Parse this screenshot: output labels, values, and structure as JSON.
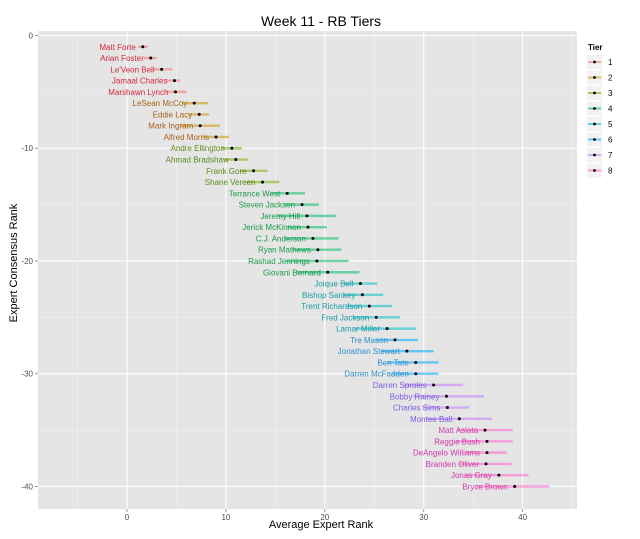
{
  "chart_data": {
    "type": "scatter",
    "title": "Week 11 - RB Tiers",
    "xlabel": "Average Expert Rank",
    "ylabel": "Expert Consensus Rank",
    "xlim": [
      -9,
      45.5
    ],
    "ylim": [
      -42,
      0.4
    ],
    "x_ticks": [
      0,
      10,
      20,
      30,
      40
    ],
    "y_ticks": [
      0,
      -10,
      -20,
      -30,
      -40
    ],
    "grid": true,
    "legend": {
      "title": "Tier",
      "placement": "top-right",
      "items": [
        {
          "tier": 1,
          "label": "1",
          "color": "#f8766d"
        },
        {
          "tier": 2,
          "label": "2",
          "color": "#cd9600"
        },
        {
          "tier": 3,
          "label": "3",
          "color": "#7cae00"
        },
        {
          "tier": 4,
          "label": "4",
          "color": "#00be67"
        },
        {
          "tier": 5,
          "label": "5",
          "color": "#00bfc4"
        },
        {
          "tier": 6,
          "label": "6",
          "color": "#00a9ff"
        },
        {
          "tier": 7,
          "label": "7",
          "color": "#c77cff"
        },
        {
          "tier": 8,
          "label": "8",
          "color": "#ff61cc"
        }
      ]
    },
    "label_colors": {
      "1": "#d7263d",
      "2": "#a8601a",
      "3": "#5e8a1a",
      "4": "#1a9a4a",
      "5": "#1a9aa6",
      "6": "#2f8fc8",
      "7": "#7a5be0",
      "8": "#d23aa8"
    },
    "players": [
      {
        "name": "Matt Forte",
        "tier": 1,
        "rank": 1,
        "x": 1.6,
        "xmin": 1.1,
        "xmax": 2.1
      },
      {
        "name": "Arian Foster",
        "tier": 1,
        "rank": 2,
        "x": 2.4,
        "xmin": 1.7,
        "xmax": 3.0
      },
      {
        "name": "Le'Veon Bell",
        "tier": 1,
        "rank": 3,
        "x": 3.5,
        "xmin": 2.6,
        "xmax": 4.6
      },
      {
        "name": "Jamaal Charles",
        "tier": 1,
        "rank": 4,
        "x": 4.8,
        "xmin": 4.0,
        "xmax": 5.4
      },
      {
        "name": "Marshawn Lynch",
        "tier": 1,
        "rank": 5,
        "x": 4.9,
        "xmin": 3.9,
        "xmax": 6.0
      },
      {
        "name": "LeSean McCoy",
        "tier": 2,
        "rank": 6,
        "x": 6.8,
        "xmin": 5.6,
        "xmax": 8.2
      },
      {
        "name": "Eddie Lacy",
        "tier": 2,
        "rank": 7,
        "x": 7.3,
        "xmin": 6.2,
        "xmax": 8.3
      },
      {
        "name": "Mark Ingram",
        "tier": 2,
        "rank": 8,
        "x": 7.4,
        "xmin": 5.4,
        "xmax": 9.4
      },
      {
        "name": "Alfred Morris",
        "tier": 2,
        "rank": 9,
        "x": 9.0,
        "xmin": 7.7,
        "xmax": 10.3
      },
      {
        "name": "Andre Ellington",
        "tier": 3,
        "rank": 10,
        "x": 10.6,
        "xmin": 9.6,
        "xmax": 11.6
      },
      {
        "name": "Ahmad Bradshaw",
        "tier": 3,
        "rank": 11,
        "x": 11.0,
        "xmin": 9.8,
        "xmax": 12.2
      },
      {
        "name": "Frank Gore",
        "tier": 3,
        "rank": 12,
        "x": 12.8,
        "xmin": 11.4,
        "xmax": 14.2
      },
      {
        "name": "Shane Vereen",
        "tier": 3,
        "rank": 13,
        "x": 13.7,
        "xmin": 12.0,
        "xmax": 15.4
      },
      {
        "name": "Terrance West",
        "tier": 4,
        "rank": 14,
        "x": 16.2,
        "xmin": 14.6,
        "xmax": 18.0
      },
      {
        "name": "Steven Jackson",
        "tier": 4,
        "rank": 15,
        "x": 17.7,
        "xmin": 15.9,
        "xmax": 19.4
      },
      {
        "name": "Jeremy Hill",
        "tier": 4,
        "rank": 16,
        "x": 18.2,
        "xmin": 15.2,
        "xmax": 21.1
      },
      {
        "name": "Jerick McKinnon",
        "tier": 4,
        "rank": 17,
        "x": 18.3,
        "xmin": 16.2,
        "xmax": 20.2
      },
      {
        "name": "C.J. Anderson",
        "tier": 4,
        "rank": 18,
        "x": 18.8,
        "xmin": 16.0,
        "xmax": 21.4
      },
      {
        "name": "Ryan Mathews",
        "tier": 4,
        "rank": 19,
        "x": 19.3,
        "xmin": 16.7,
        "xmax": 21.7
      },
      {
        "name": "Rashad Jennings",
        "tier": 4,
        "rank": 20,
        "x": 19.2,
        "xmin": 16.1,
        "xmax": 22.4
      },
      {
        "name": "Giovani Bernard",
        "tier": 4,
        "rank": 21,
        "x": 20.3,
        "xmin": 17.1,
        "xmax": 23.5
      },
      {
        "name": "Joique Bell",
        "tier": 5,
        "rank": 22,
        "x": 23.6,
        "xmin": 21.9,
        "xmax": 25.3
      },
      {
        "name": "Bishop Sankey",
        "tier": 5,
        "rank": 23,
        "x": 23.8,
        "xmin": 21.9,
        "xmax": 25.9
      },
      {
        "name": "Trent Richardson",
        "tier": 5,
        "rank": 24,
        "x": 24.5,
        "xmin": 22.2,
        "xmax": 26.8
      },
      {
        "name": "Fred Jackson",
        "tier": 5,
        "rank": 25,
        "x": 25.2,
        "xmin": 22.8,
        "xmax": 27.6
      },
      {
        "name": "Lamar Miller",
        "tier": 5,
        "rank": 26,
        "x": 26.3,
        "xmin": 23.1,
        "xmax": 29.2
      },
      {
        "name": "Tre Mason",
        "tier": 6,
        "rank": 27,
        "x": 27.1,
        "xmin": 25.1,
        "xmax": 29.4
      },
      {
        "name": "Jonathan Stewart",
        "tier": 6,
        "rank": 28,
        "x": 28.3,
        "xmin": 25.7,
        "xmax": 31.0
      },
      {
        "name": "Ben Tate",
        "tier": 6,
        "rank": 29,
        "x": 29.2,
        "xmin": 26.3,
        "xmax": 31.5
      },
      {
        "name": "Darren McFadden",
        "tier": 6,
        "rank": 30,
        "x": 29.2,
        "xmin": 26.8,
        "xmax": 31.5
      },
      {
        "name": "Darren Sproles",
        "tier": 7,
        "rank": 31,
        "x": 31.0,
        "xmin": 28.0,
        "xmax": 34.0
      },
      {
        "name": "Bobby Rainey",
        "tier": 7,
        "rank": 32,
        "x": 32.3,
        "xmin": 28.9,
        "xmax": 36.1
      },
      {
        "name": "Charles Sims",
        "tier": 7,
        "rank": 33,
        "x": 32.4,
        "xmin": 29.9,
        "xmax": 34.6
      },
      {
        "name": "Montee Ball",
        "tier": 7,
        "rank": 34,
        "x": 33.6,
        "xmin": 30.3,
        "xmax": 36.9
      },
      {
        "name": "Matt Asiata",
        "tier": 8,
        "rank": 35,
        "x": 36.2,
        "xmin": 33.4,
        "xmax": 39.0
      },
      {
        "name": "Reggie Bush",
        "tier": 8,
        "rank": 36,
        "x": 36.4,
        "xmin": 33.3,
        "xmax": 39.0
      },
      {
        "name": "DeAngelo Williams",
        "tier": 8,
        "rank": 37,
        "x": 36.4,
        "xmin": 34.2,
        "xmax": 38.4
      },
      {
        "name": "Branden Oliver",
        "tier": 8,
        "rank": 38,
        "x": 36.3,
        "xmin": 33.6,
        "xmax": 38.9
      },
      {
        "name": "Jonas Gray",
        "tier": 8,
        "rank": 39,
        "x": 37.6,
        "xmin": 34.2,
        "xmax": 40.6
      },
      {
        "name": "Bryce Brown",
        "tier": 8,
        "rank": 40,
        "x": 39.2,
        "xmin": 35.3,
        "xmax": 42.7
      }
    ]
  }
}
